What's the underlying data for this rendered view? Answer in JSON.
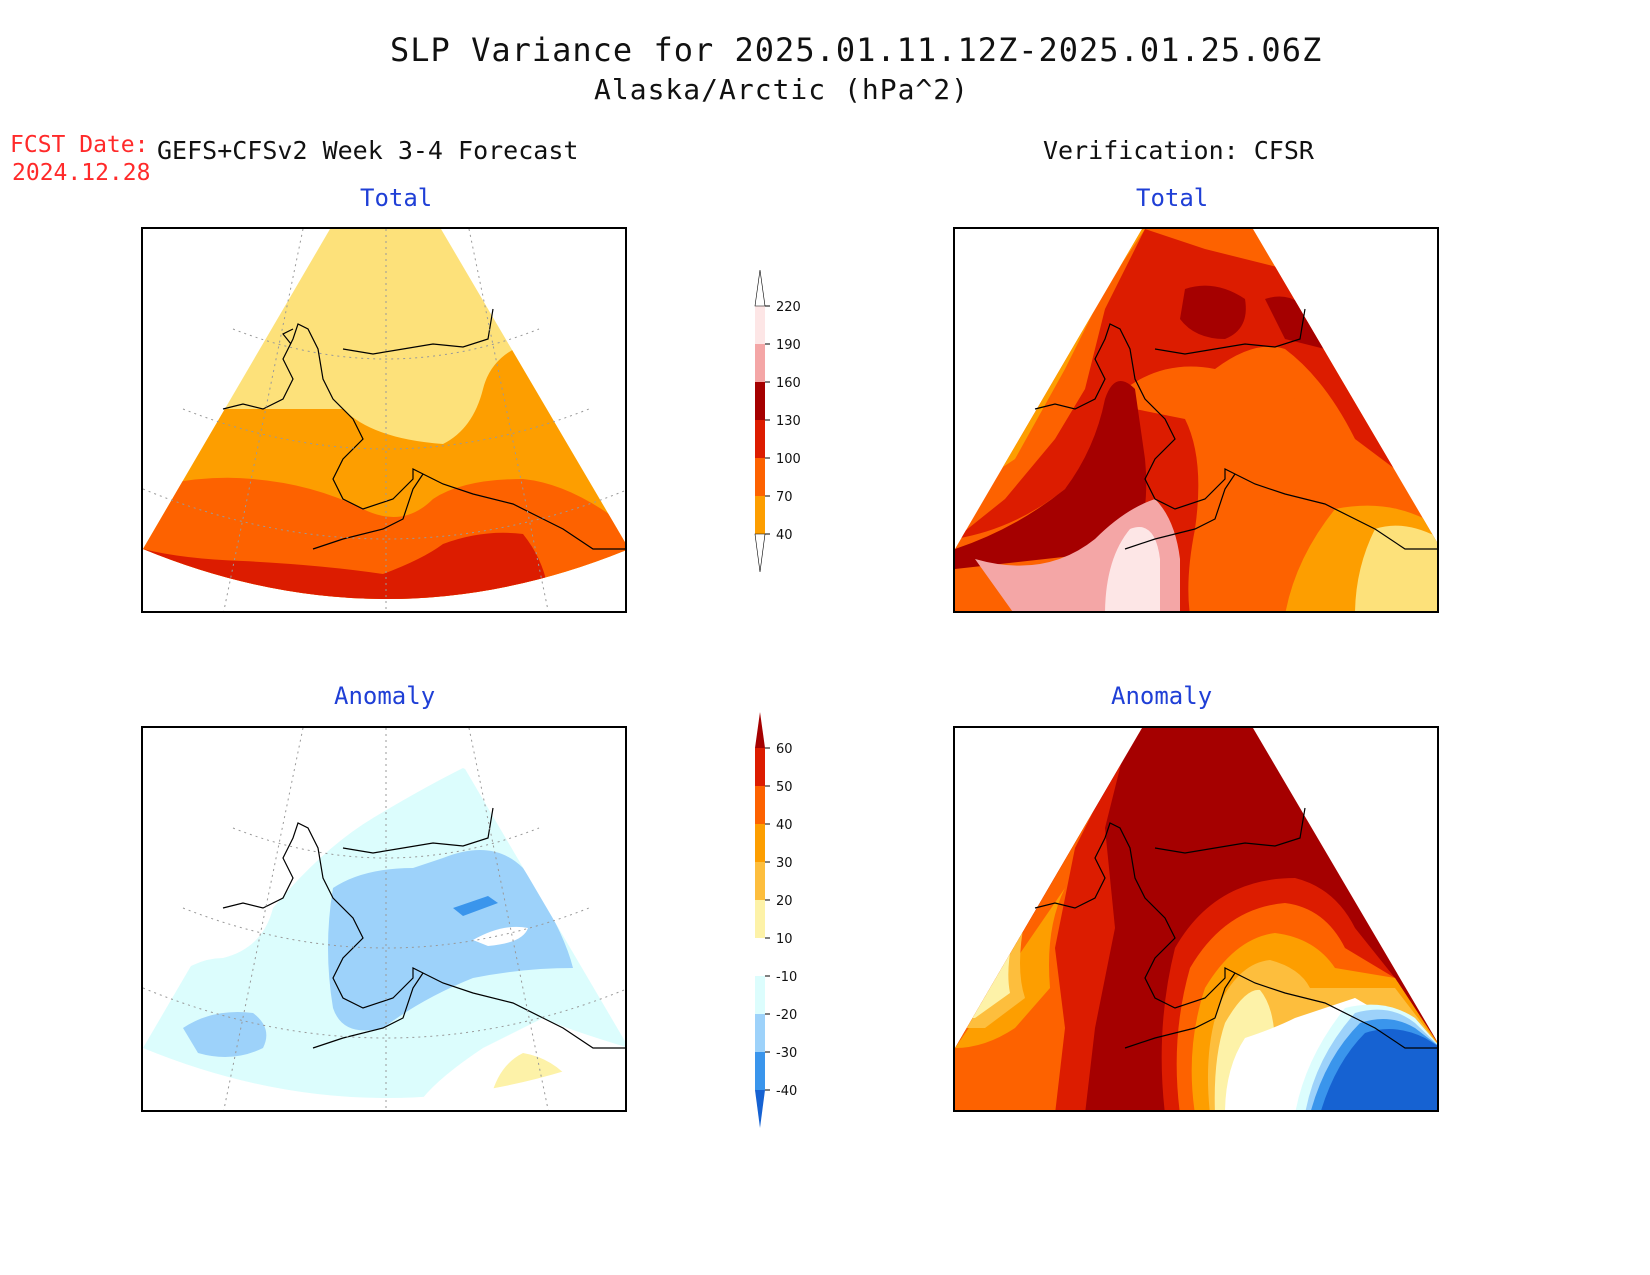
{
  "header": {
    "title": "SLP Variance for 2025.01.11.12Z-2025.01.25.06Z",
    "subtitle": "Alaska/Arctic (hPa^2)",
    "fcst_label": "FCST Date:",
    "fcst_date": "2024.12.28",
    "left_heading": "GEFS+CFSv2 Week 3-4 Forecast",
    "right_heading": "Verification: CFSR"
  },
  "panels": {
    "forecast_total": {
      "title": "Total"
    },
    "verif_total": {
      "title": "Total"
    },
    "forecast_anomaly": {
      "title": "Anomaly"
    },
    "verif_anomaly": {
      "title": "Anomaly"
    }
  },
  "colorbars": {
    "total": {
      "labels": [
        "220",
        "190",
        "160",
        "130",
        "100",
        "70",
        "40"
      ],
      "colors": [
        "#fde6e6",
        "#f4a6a6",
        "#a50000",
        "#dc1c00",
        "#fd6200",
        "#fd9e00",
        "#fde17a",
        "#ffffff"
      ]
    },
    "anomaly": {
      "labels": [
        "60",
        "50",
        "40",
        "30",
        "20",
        "10",
        "-10",
        "-20",
        "-30",
        "-40"
      ],
      "colors": [
        "#a50000",
        "#dc1c00",
        "#fd6200",
        "#fd9e00",
        "#fdbe3d",
        "#fdf2a8",
        "#ffffff",
        "#dcfdfd",
        "#9dd2fa",
        "#3a95ec",
        "#1662d2"
      ]
    }
  },
  "map_colors": {
    "c40": "#fde17a",
    "c70": "#fd9e00",
    "c100": "#fd6200",
    "c130": "#dc1c00",
    "c160": "#a50000",
    "c190": "#f4a6a6",
    "c220": "#fde6e6",
    "a10": "#fdf2a8",
    "a20": "#fdbe3d",
    "a30": "#fd9e00",
    "a40": "#fd6200",
    "a50": "#dc1c00",
    "a60": "#a50000",
    "an10": "#dcfdfd",
    "an20": "#9dd2fa",
    "an30": "#3a95ec",
    "an40": "#1662d2"
  }
}
